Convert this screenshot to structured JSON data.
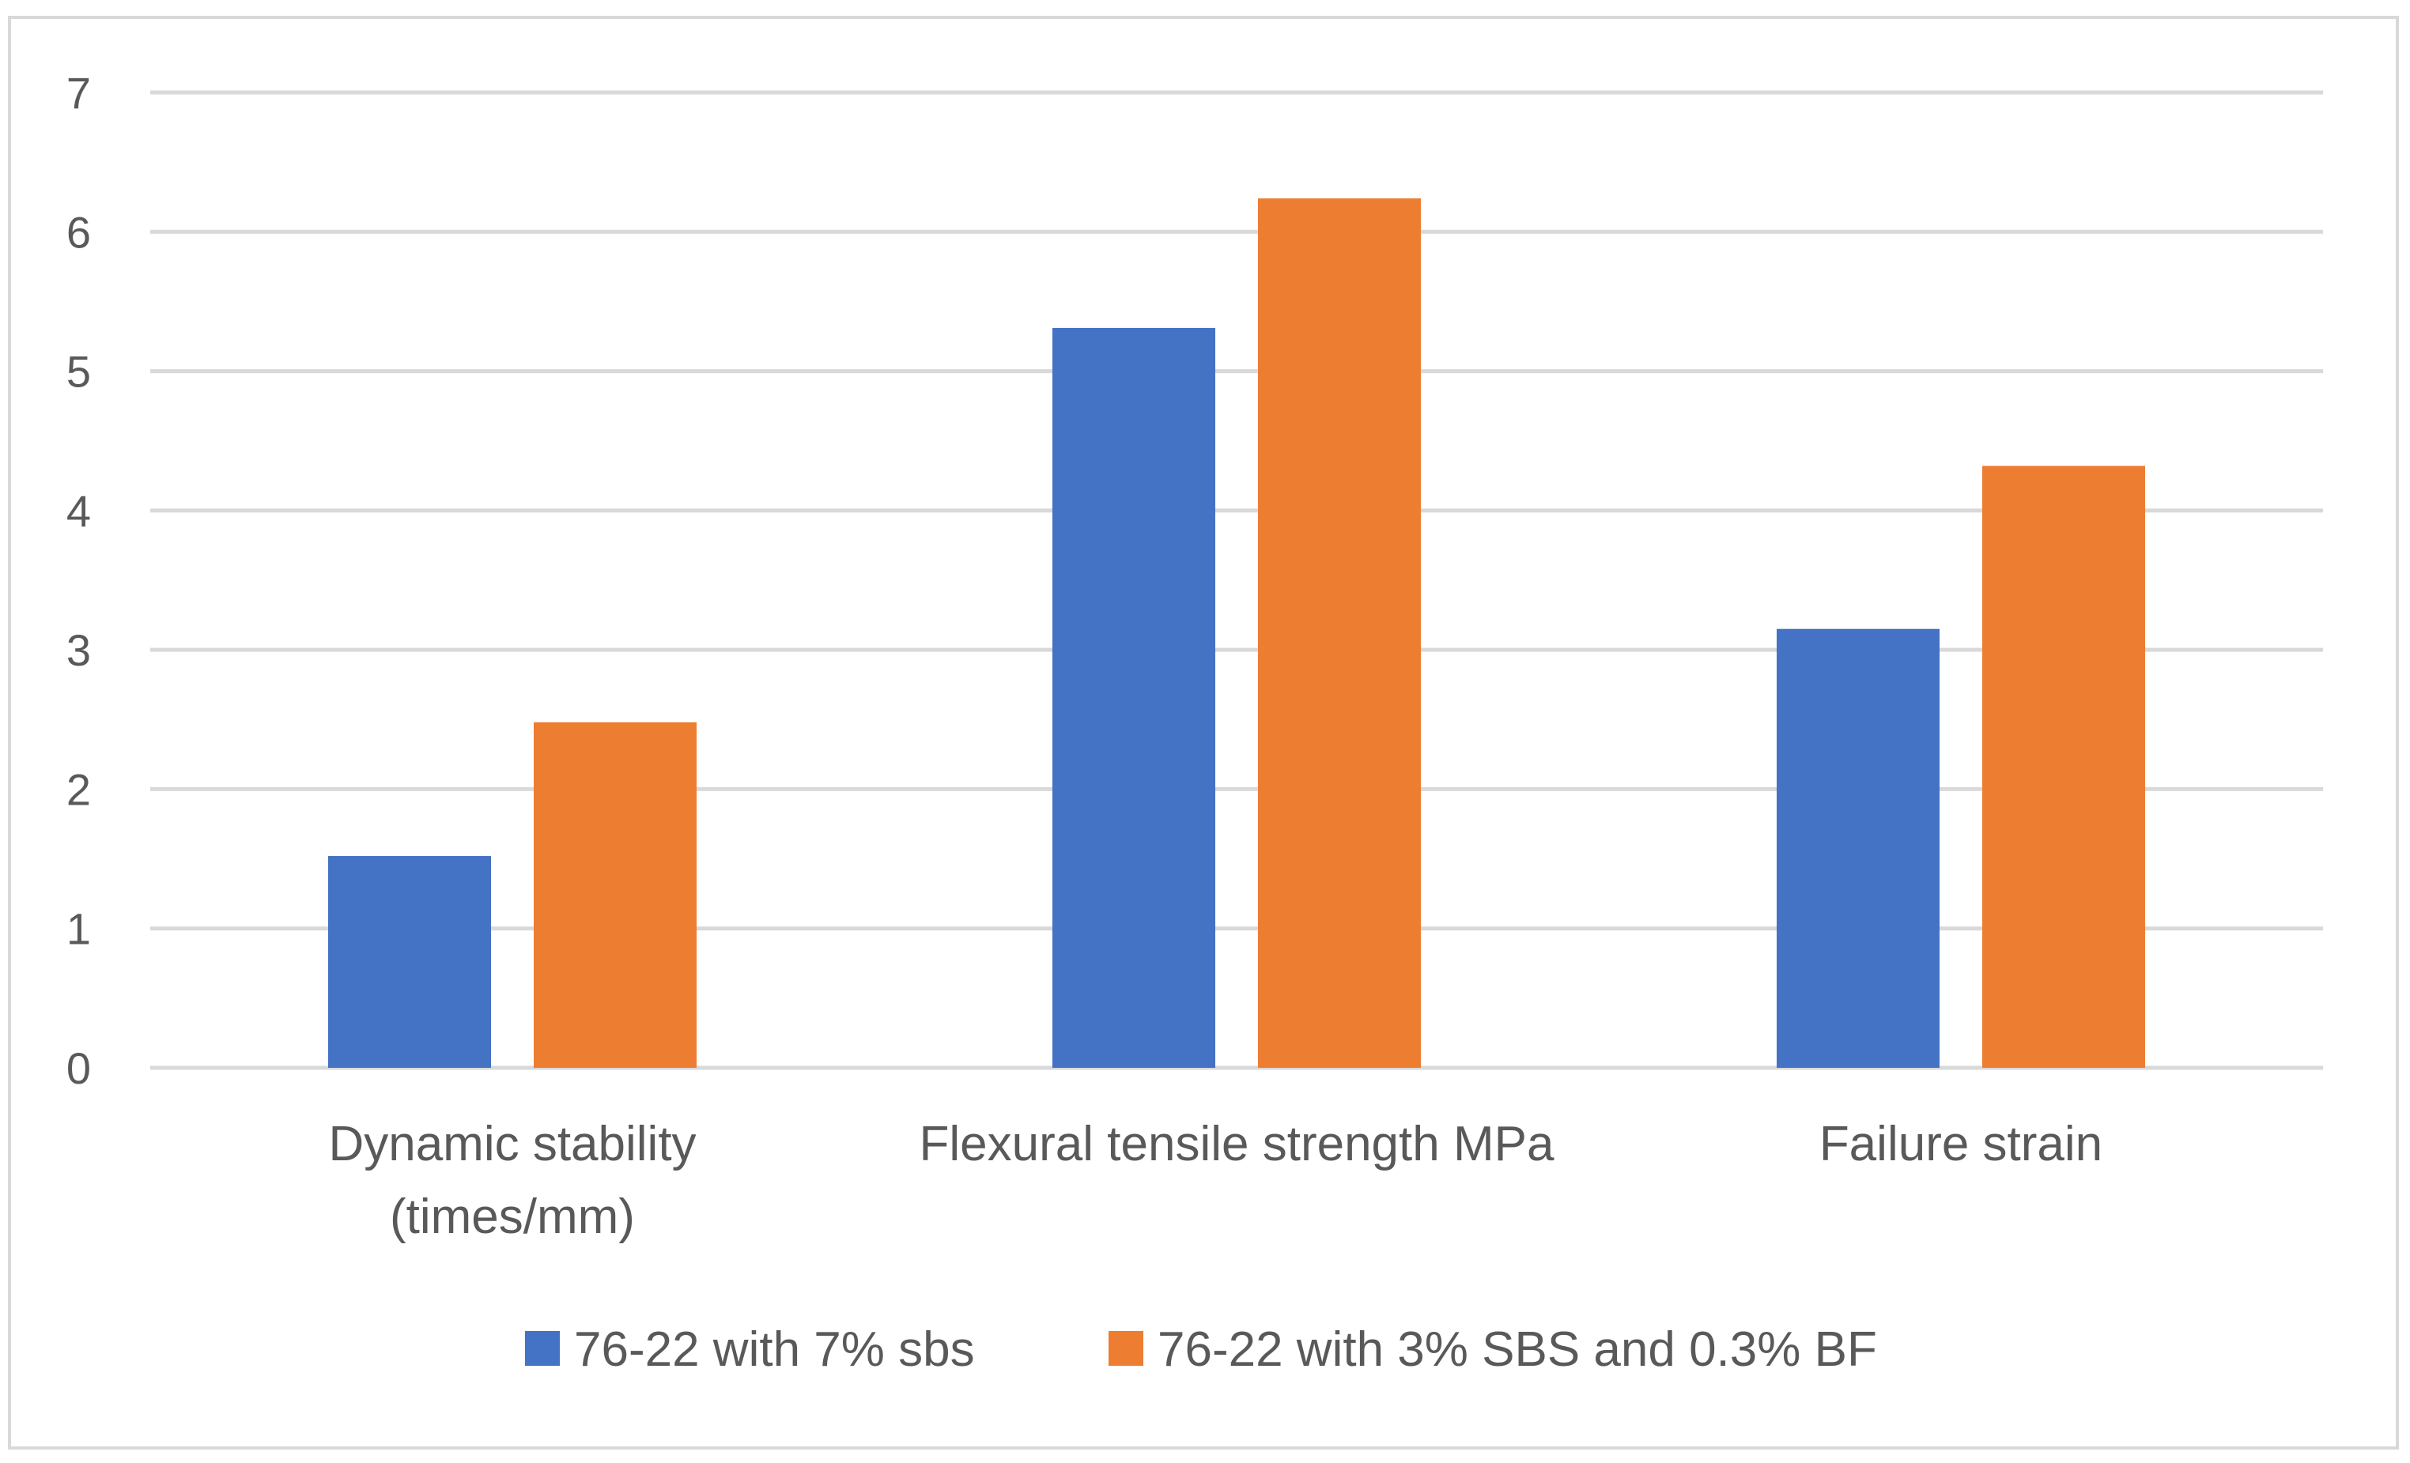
{
  "chart_data": {
    "type": "bar",
    "title": "",
    "xlabel": "",
    "ylabel": "",
    "ylim": [
      0,
      7
    ],
    "yticks": [
      0,
      1,
      2,
      3,
      4,
      5,
      6,
      7
    ],
    "grid": true,
    "legend_position": "bottom",
    "categories": [
      [
        "Dynamic stability",
        "(times/mm)"
      ],
      [
        "Flexural tensile strength MPa"
      ],
      [
        "Failure strain"
      ]
    ],
    "series": [
      {
        "name": "76-22 with 7% sbs",
        "color": "#4472C4",
        "values": [
          1.52,
          5.31,
          3.15
        ]
      },
      {
        "name": "76-22 with 3% SBS and 0.3% BF",
        "color": "#ED7D31",
        "values": [
          2.48,
          6.24,
          4.32
        ]
      }
    ]
  }
}
